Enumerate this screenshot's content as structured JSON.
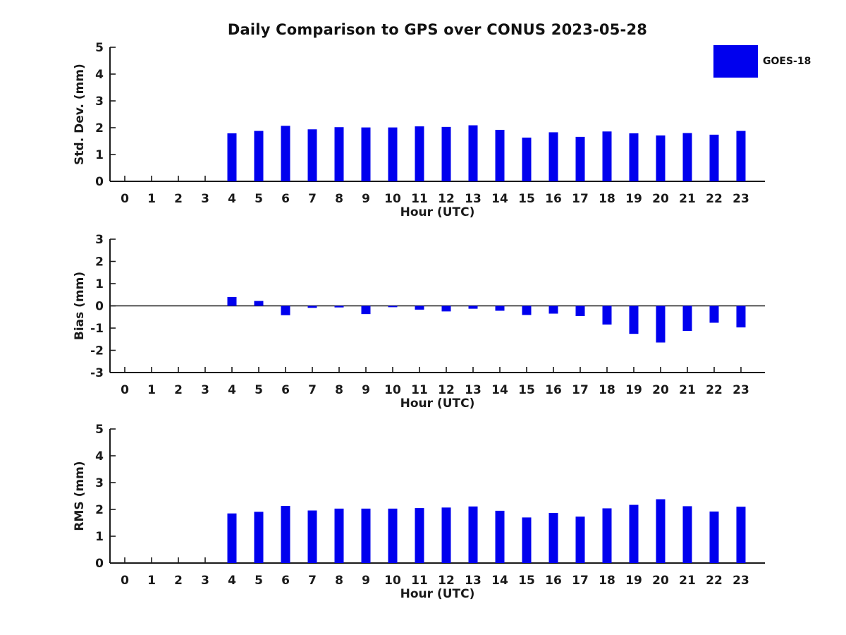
{
  "title": "Daily Comparison to GPS over CONUS 2023-05-28",
  "legend": {
    "label": "GOES-18",
    "color": "#0000ee"
  },
  "colors": {
    "bar": "#0000ee",
    "axis": "#1a1a1a",
    "text": "#1a1a1a"
  },
  "chart_data": [
    {
      "type": "bar",
      "ylabel": "Std. Dev. (mm)",
      "xlabel": "Hour (UTC)",
      "ylim": [
        0,
        5
      ],
      "yticks": [
        0,
        1,
        2,
        3,
        4,
        5
      ],
      "zero_line": false,
      "categories": [
        0,
        1,
        2,
        3,
        4,
        5,
        6,
        7,
        8,
        9,
        10,
        11,
        12,
        13,
        14,
        15,
        16,
        17,
        18,
        19,
        20,
        21,
        22,
        23
      ],
      "series": [
        {
          "name": "GOES-18",
          "values": [
            null,
            null,
            null,
            null,
            1.79,
            1.88,
            2.07,
            1.94,
            2.02,
            2.01,
            2.01,
            2.05,
            2.03,
            2.09,
            1.92,
            1.63,
            1.83,
            1.66,
            1.86,
            1.79,
            1.71,
            1.8,
            1.74,
            1.88
          ]
        }
      ]
    },
    {
      "type": "bar",
      "ylabel": "Bias (mm)",
      "xlabel": "Hour (UTC)",
      "ylim": [
        -3,
        3
      ],
      "yticks": [
        -3,
        -2,
        -1,
        0,
        1,
        2,
        3
      ],
      "zero_line": true,
      "categories": [
        0,
        1,
        2,
        3,
        4,
        5,
        6,
        7,
        8,
        9,
        10,
        11,
        12,
        13,
        14,
        15,
        16,
        17,
        18,
        19,
        20,
        21,
        22,
        23
      ],
      "series": [
        {
          "name": "GOES-18",
          "values": [
            null,
            null,
            null,
            null,
            0.4,
            0.22,
            -0.42,
            -0.09,
            -0.07,
            -0.37,
            -0.06,
            -0.17,
            -0.25,
            -0.13,
            -0.22,
            -0.41,
            -0.35,
            -0.46,
            -0.84,
            -1.26,
            -1.65,
            -1.13,
            -0.76,
            -0.97
          ]
        }
      ]
    },
    {
      "type": "bar",
      "ylabel": "RMS (mm)",
      "xlabel": "Hour (UTC)",
      "ylim": [
        0,
        5
      ],
      "yticks": [
        0,
        1,
        2,
        3,
        4,
        5
      ],
      "zero_line": false,
      "categories": [
        0,
        1,
        2,
        3,
        4,
        5,
        6,
        7,
        8,
        9,
        10,
        11,
        12,
        13,
        14,
        15,
        16,
        17,
        18,
        19,
        20,
        21,
        22,
        23
      ],
      "series": [
        {
          "name": "GOES-18",
          "values": [
            null,
            null,
            null,
            null,
            1.85,
            1.91,
            2.13,
            1.96,
            2.03,
            2.03,
            2.03,
            2.05,
            2.07,
            2.11,
            1.95,
            1.7,
            1.87,
            1.73,
            2.04,
            2.17,
            2.38,
            2.12,
            1.92,
            2.1
          ]
        }
      ]
    }
  ]
}
